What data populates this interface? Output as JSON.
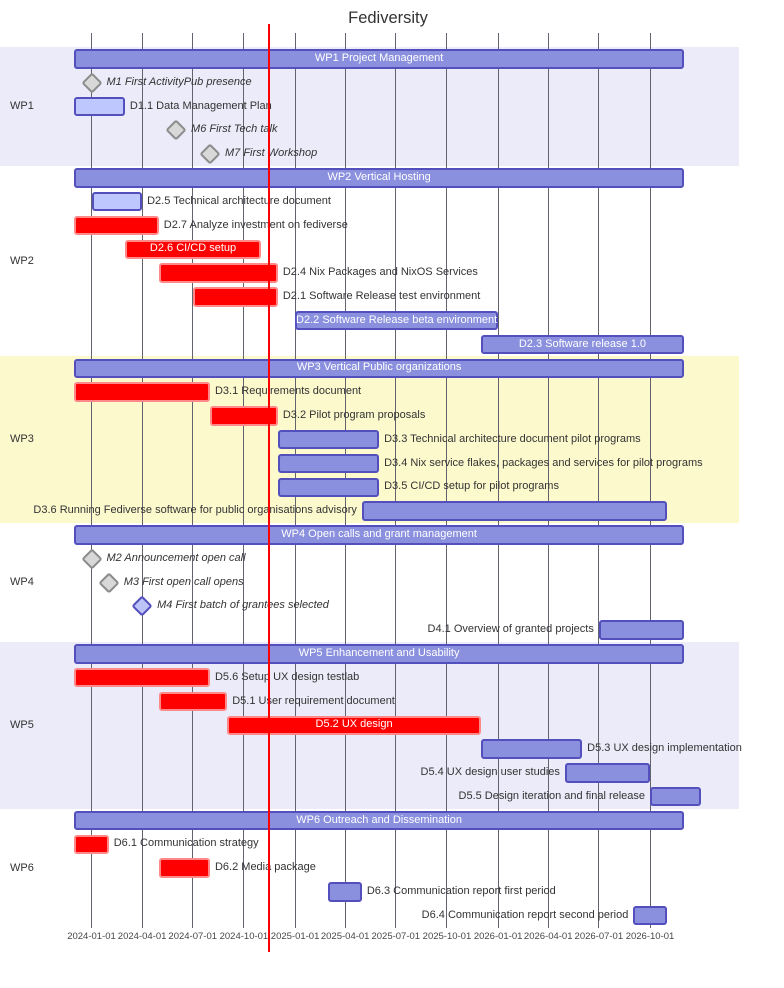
{
  "chart_data": {
    "type": "gantt",
    "title": "Fediversity",
    "today_marker": "2024-11-15",
    "axis_tick_labels": [
      "2024-01-01",
      "2024-04-01",
      "2024-07-01",
      "2024-10-01",
      "2025-01-01",
      "2025-04-01",
      "2025-07-01",
      "2025-10-01",
      "2026-01-01",
      "2026-04-01",
      "2026-07-01",
      "2026-10-01"
    ],
    "colors": {
      "task_fill": "#8a90dd",
      "task_border": "#534fbc",
      "active_fill": "#bfc7ff",
      "active_border": "#534fbc",
      "crit_fill": "#ff0000",
      "crit_border": "#ff8888",
      "done_milestone_fill": "#d8d8d8",
      "done_milestone_border": "#8c8c8c",
      "active_milestone_fill": "#bcc3f8",
      "active_milestone_border": "#534fbc",
      "section_lavender": "#ebebf9",
      "section_yellow": "#fcf9cd",
      "today_line": "#ff0000",
      "grid_line": "#63636e",
      "bar_text": "#ffffff"
    },
    "sections": [
      {
        "name": "WP1",
        "band": "lavender",
        "tasks": [
          {
            "id": "wp1",
            "label": "WP1 Project Management",
            "start": "2023-12-01",
            "end": "2026-12-01",
            "kind": "summary",
            "label_pos": "inside"
          },
          {
            "id": "m1",
            "label": "M1 First ActivityPub presence",
            "date": "2024-01-01",
            "kind": "milestone-done",
            "label_pos": "right"
          },
          {
            "id": "d1-1",
            "label": "D1.1 Data Management Plan",
            "start": "2023-12-01",
            "end": "2024-03-01",
            "kind": "active",
            "label_pos": "right"
          },
          {
            "id": "m6",
            "label": "M6 First Tech talk",
            "date": "2024-06-01",
            "kind": "milestone-done",
            "label_pos": "right"
          },
          {
            "id": "m7",
            "label": "M7 First Workshop",
            "date": "2024-08-01",
            "kind": "milestone-done",
            "label_pos": "right"
          }
        ]
      },
      {
        "name": "WP2",
        "band": "none",
        "tasks": [
          {
            "id": "wp2",
            "label": "WP2 Vertical Hosting",
            "start": "2023-12-01",
            "end": "2026-12-01",
            "kind": "summary",
            "label_pos": "inside"
          },
          {
            "id": "d2-5",
            "label": "D2.5 Technical architecture document",
            "start": "2024-01-01",
            "end": "2024-04-01",
            "kind": "active",
            "label_pos": "right"
          },
          {
            "id": "d2-7",
            "label": "D2.7 Analyze investment on fediverse",
            "start": "2023-12-01",
            "end": "2024-05-01",
            "kind": "crit",
            "label_pos": "right"
          },
          {
            "id": "d2-6",
            "label": "D2.6 CI/CD setup",
            "start": "2024-03-01",
            "end": "2024-11-01",
            "kind": "crit",
            "label_pos": "inside"
          },
          {
            "id": "d2-4",
            "label": "D2.4 Nix Packages and NixOS Services",
            "start": "2024-05-01",
            "end": "2024-12-01",
            "kind": "crit",
            "label_pos": "right"
          },
          {
            "id": "d2-1",
            "label": "D2.1 Software Release test environment",
            "start": "2024-07-01",
            "end": "2024-12-01",
            "kind": "crit",
            "label_pos": "right"
          },
          {
            "id": "d2-2",
            "label": "D2.2 Software Release beta environment",
            "start": "2025-01-01",
            "end": "2026-01-01",
            "kind": "task",
            "label_pos": "inside"
          },
          {
            "id": "d2-3",
            "label": "D2.3 Software release 1.0",
            "start": "2025-12-01",
            "end": "2026-12-01",
            "kind": "task",
            "label_pos": "inside"
          }
        ]
      },
      {
        "name": "WP3",
        "band": "yellow",
        "tasks": [
          {
            "id": "wp3",
            "label": "WP3 Vertical Public organizations",
            "start": "2023-12-01",
            "end": "2026-12-01",
            "kind": "summary",
            "label_pos": "inside"
          },
          {
            "id": "d3-1",
            "label": "D3.1 Requirements document",
            "start": "2023-12-01",
            "end": "2024-08-01",
            "kind": "crit",
            "label_pos": "right"
          },
          {
            "id": "d3-2",
            "label": "D3.2 Pilot program proposals",
            "start": "2024-08-01",
            "end": "2024-12-01",
            "kind": "crit",
            "label_pos": "right"
          },
          {
            "id": "d3-3",
            "label": "D3.3 Technical architecture document pilot programs",
            "start": "2024-12-01",
            "end": "2025-06-01",
            "kind": "task",
            "label_pos": "right"
          },
          {
            "id": "d3-4",
            "label": "D3.4 Nix service flakes, packages and services for pilot programs",
            "start": "2024-12-01",
            "end": "2025-06-01",
            "kind": "task",
            "label_pos": "right"
          },
          {
            "id": "d3-5",
            "label": "D3.5 CI/CD setup for pilot programs",
            "start": "2024-12-01",
            "end": "2025-06-01",
            "kind": "task",
            "label_pos": "right"
          },
          {
            "id": "d3-6",
            "label": "D3.6 Running Fediverse software for public organisations advisory",
            "start": "2025-05-01",
            "end": "2026-11-01",
            "kind": "task",
            "label_pos": "left"
          }
        ]
      },
      {
        "name": "WP4",
        "band": "none",
        "tasks": [
          {
            "id": "wp4",
            "label": "WP4 Open calls and grant management",
            "start": "2023-12-01",
            "end": "2026-12-01",
            "kind": "summary",
            "label_pos": "inside"
          },
          {
            "id": "m2",
            "label": "M2 Announcement open call",
            "date": "2024-01-01",
            "kind": "milestone-done",
            "label_pos": "right"
          },
          {
            "id": "m3",
            "label": "M3 First open call opens",
            "date": "2024-02-01",
            "kind": "milestone-done",
            "label_pos": "right"
          },
          {
            "id": "m4",
            "label": "M4 First batch of grantees selected",
            "date": "2024-04-01",
            "kind": "milestone-active",
            "label_pos": "right"
          },
          {
            "id": "d4-1",
            "label": "D4.1 Overview of granted projects",
            "start": "2026-07-01",
            "end": "2026-12-01",
            "kind": "task",
            "label_pos": "left"
          }
        ]
      },
      {
        "name": "WP5",
        "band": "lavender",
        "tasks": [
          {
            "id": "wp5",
            "label": "WP5 Enhancement and Usability",
            "start": "2023-12-01",
            "end": "2026-12-01",
            "kind": "summary",
            "label_pos": "inside"
          },
          {
            "id": "d5-6",
            "label": "D5.6 Setup UX design testlab",
            "start": "2023-12-01",
            "end": "2024-08-01",
            "kind": "crit",
            "label_pos": "right"
          },
          {
            "id": "d5-1",
            "label": "D5.1 User requirement document",
            "start": "2024-05-01",
            "end": "2024-09-01",
            "kind": "crit",
            "label_pos": "right"
          },
          {
            "id": "d5-2",
            "label": "D5.2 UX design",
            "start": "2024-09-01",
            "end": "2025-12-01",
            "kind": "crit",
            "label_pos": "inside"
          },
          {
            "id": "d5-3",
            "label": "D5.3 UX design implementation",
            "start": "2025-12-01",
            "end": "2026-06-01",
            "kind": "task",
            "label_pos": "right"
          },
          {
            "id": "d5-4",
            "label": "D5.4 UX design user studies",
            "start": "2026-05-01",
            "end": "2026-10-01",
            "kind": "task",
            "label_pos": "left"
          },
          {
            "id": "d5-5",
            "label": "D5.5 Design iteration and final release",
            "start": "2026-10-01",
            "end": "2027-01-01",
            "kind": "task",
            "label_pos": "left"
          }
        ]
      },
      {
        "name": "WP6",
        "band": "none",
        "tasks": [
          {
            "id": "wp6",
            "label": "WP6 Outreach and Dissemination",
            "start": "2023-12-01",
            "end": "2026-12-01",
            "kind": "summary",
            "label_pos": "inside"
          },
          {
            "id": "d6-1",
            "label": "D6.1 Communication strategy",
            "start": "2023-12-01",
            "end": "2024-02-01",
            "kind": "crit",
            "label_pos": "right"
          },
          {
            "id": "d6-2",
            "label": "D6.2 Media package",
            "start": "2024-05-01",
            "end": "2024-08-01",
            "kind": "crit",
            "label_pos": "right"
          },
          {
            "id": "d6-3",
            "label": "D6.3 Communication report first period",
            "start": "2025-03-01",
            "end": "2025-05-01",
            "kind": "task",
            "label_pos": "right"
          },
          {
            "id": "d6-4",
            "label": "D6.4 Communication report second period",
            "start": "2026-09-01",
            "end": "2026-11-01",
            "kind": "task",
            "label_pos": "left"
          }
        ]
      }
    ]
  }
}
